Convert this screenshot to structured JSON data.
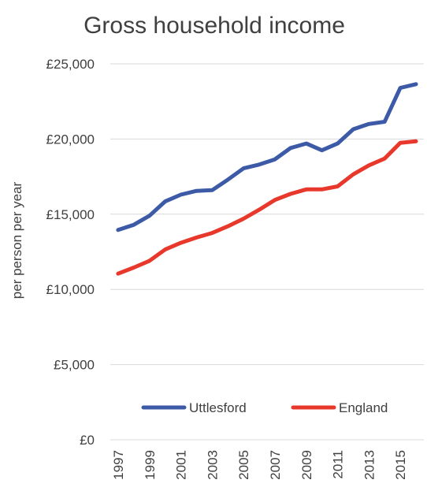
{
  "chart_data": {
    "type": "line",
    "title": "Gross household income",
    "ylabel": "per person per year",
    "xlabel": "",
    "x": [
      1997,
      1998,
      1999,
      2000,
      2001,
      2002,
      2003,
      2004,
      2005,
      2006,
      2007,
      2008,
      2009,
      2010,
      2011,
      2012,
      2013,
      2014,
      2015,
      2016
    ],
    "x_tick_labels": [
      "1997",
      "1999",
      "2001",
      "2003",
      "2005",
      "2007",
      "2009",
      "2011",
      "2013",
      "2015"
    ],
    "y_ticks": [
      0,
      5000,
      10000,
      15000,
      20000,
      25000
    ],
    "y_tick_labels": [
      "£0",
      "£5,000",
      "£10,000",
      "£15,000",
      "£20,000",
      "£25,000"
    ],
    "ylim": [
      0,
      25000
    ],
    "grid": "horizontal",
    "legend_position": "lower-center",
    "series": [
      {
        "name": "Uttlesford",
        "color": "#3c5aa6",
        "values": [
          13950,
          14300,
          14900,
          15850,
          16300,
          16550,
          16600,
          17300,
          18050,
          18300,
          18650,
          19400,
          19700,
          19250,
          19700,
          20650,
          21000,
          21150,
          23400,
          23650
        ]
      },
      {
        "name": "England",
        "color": "#e8382c",
        "values": [
          11050,
          11450,
          11900,
          12650,
          13100,
          13450,
          13750,
          14200,
          14700,
          15300,
          15950,
          16350,
          16650,
          16650,
          16850,
          17650,
          18250,
          18700,
          19750,
          19850
        ]
      }
    ]
  }
}
